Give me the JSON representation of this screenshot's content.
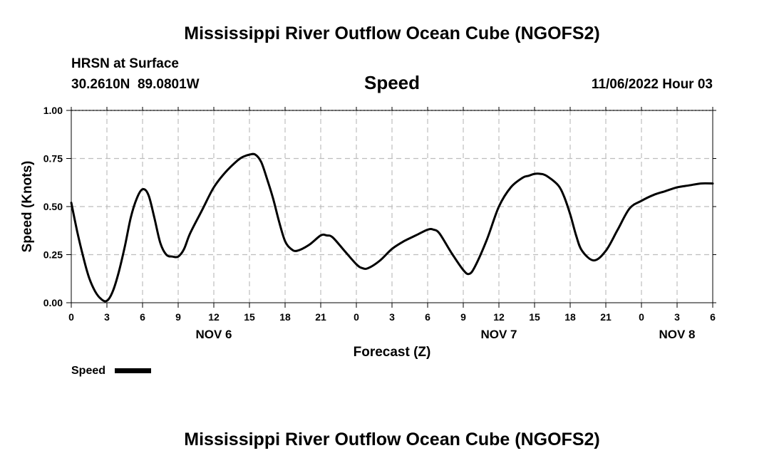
{
  "header": {
    "title": "Mississippi River Outflow Ocean Cube (NGOFS2)",
    "station": "HRSN at Surface",
    "coords": "30.2610N  89.0801W",
    "variable": "Speed",
    "datetime": "11/06/2022 Hour 03"
  },
  "footer": {
    "title": "Mississippi River Outflow Ocean Cube (NGOFS2)"
  },
  "chart_data": {
    "type": "line",
    "xlabel": "Forecast (Z)",
    "ylabel": "Speed (Knots)",
    "xlim": [
      0,
      54
    ],
    "ylim": [
      0,
      1
    ],
    "grid": true,
    "x_ticks": [
      0,
      3,
      6,
      9,
      12,
      15,
      18,
      21,
      24,
      27,
      30,
      33,
      36,
      39,
      42,
      45,
      48,
      51,
      54
    ],
    "x_tick_labels": [
      "0",
      "3",
      "6",
      "9",
      "12",
      "15",
      "18",
      "21",
      "0",
      "3",
      "6",
      "9",
      "12",
      "15",
      "18",
      "21",
      "0",
      "3",
      "6"
    ],
    "y_ticks": [
      0,
      0.25,
      0.5,
      0.75,
      1.0
    ],
    "y_tick_labels": [
      "0.00",
      "0.25",
      "0.50",
      "0.75",
      "1.00"
    ],
    "day_labels": [
      {
        "x": 12,
        "label": "NOV 6"
      },
      {
        "x": 36,
        "label": "NOV 7"
      },
      {
        "x": 51,
        "label": "NOV 8"
      }
    ],
    "legend": {
      "position": "bottom-left",
      "label": "Speed"
    },
    "series": [
      {
        "name": "Speed",
        "color": "#000000",
        "x": [
          0,
          0.5,
          1,
          1.5,
          2,
          2.5,
          3,
          3.5,
          4,
          4.5,
          5,
          5.5,
          6,
          6.5,
          7,
          7.5,
          8,
          8.5,
          9,
          9.5,
          10,
          11,
          12,
          13,
          14,
          14.5,
          15,
          15.5,
          16,
          16.5,
          17,
          17.5,
          18,
          18.5,
          19,
          20,
          21,
          21.5,
          22,
          23,
          24,
          24.5,
          25,
          26,
          27,
          28,
          29,
          30,
          30.5,
          31,
          32,
          33,
          33.5,
          34,
          35,
          36,
          37,
          38,
          38.5,
          39,
          39.5,
          40,
          41,
          41.5,
          42,
          42.5,
          43,
          44,
          45,
          46,
          47,
          48,
          49,
          50,
          51,
          52,
          53,
          54
        ],
        "y": [
          0.52,
          0.37,
          0.24,
          0.13,
          0.06,
          0.02,
          0.01,
          0.06,
          0.16,
          0.29,
          0.44,
          0.54,
          0.59,
          0.56,
          0.44,
          0.31,
          0.25,
          0.24,
          0.24,
          0.28,
          0.36,
          0.48,
          0.6,
          0.68,
          0.74,
          0.76,
          0.77,
          0.77,
          0.73,
          0.64,
          0.54,
          0.42,
          0.32,
          0.28,
          0.27,
          0.3,
          0.35,
          0.35,
          0.34,
          0.27,
          0.2,
          0.18,
          0.18,
          0.22,
          0.28,
          0.32,
          0.35,
          0.38,
          0.38,
          0.36,
          0.26,
          0.17,
          0.15,
          0.19,
          0.33,
          0.5,
          0.6,
          0.65,
          0.66,
          0.67,
          0.67,
          0.66,
          0.61,
          0.55,
          0.46,
          0.35,
          0.27,
          0.22,
          0.27,
          0.38,
          0.49,
          0.53,
          0.56,
          0.58,
          0.6,
          0.61,
          0.62,
          0.62
        ]
      }
    ]
  }
}
